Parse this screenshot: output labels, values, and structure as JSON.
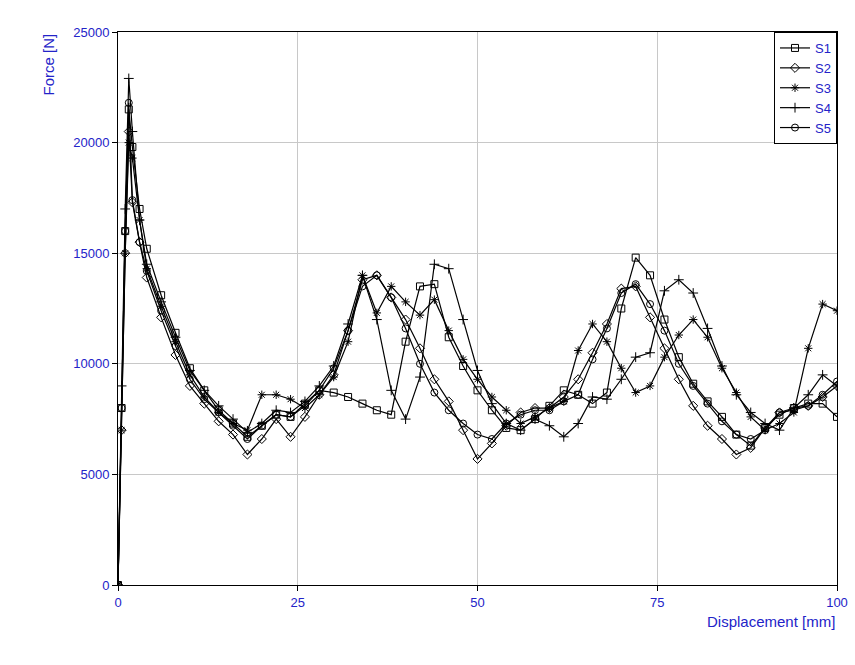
{
  "chart_data": {
    "type": "line",
    "x_label": "Displacement [mm]",
    "y_label": "Force [N]",
    "x": [
      0,
      0.5,
      1,
      1.5,
      2,
      3,
      4,
      6,
      8,
      10,
      12,
      14,
      16,
      18,
      20,
      22,
      24,
      26,
      28,
      30,
      32,
      34,
      36,
      38,
      40,
      42,
      44,
      46,
      48,
      50,
      52,
      54,
      56,
      58,
      60,
      62,
      64,
      66,
      68,
      70,
      72,
      74,
      76,
      78,
      80,
      82,
      84,
      86,
      88,
      90,
      92,
      94,
      96,
      98,
      100
    ],
    "series": [
      {
        "name": "S1",
        "color": "#000000",
        "marker": "square-open",
        "values": [
          0,
          8000,
          16000,
          21500,
          19800,
          17000,
          15200,
          13100,
          11400,
          9800,
          8800,
          7900,
          7300,
          6700,
          7200,
          7700,
          7600,
          8200,
          8800,
          8700,
          8500,
          8200,
          7900,
          7700,
          11000,
          13500,
          13600,
          11200,
          9900,
          8800,
          7900,
          7100,
          7000,
          7500,
          8100,
          8800,
          8600,
          8200,
          8700,
          12500,
          14800,
          14000,
          12000,
          10300,
          9100,
          8300,
          7600,
          6800,
          6300,
          7100,
          7700,
          8000,
          8200,
          8200,
          7600
        ]
      },
      {
        "name": "S2",
        "color": "#000000",
        "marker": "diamond-open",
        "values": [
          0,
          7000,
          15000,
          20500,
          17300,
          15500,
          13900,
          12100,
          10400,
          9000,
          8200,
          7400,
          6800,
          5900,
          6600,
          7500,
          6700,
          7600,
          8600,
          9500,
          11500,
          13800,
          14000,
          13000,
          12000,
          10700,
          9300,
          8300,
          7000,
          5700,
          6400,
          7200,
          7800,
          8000,
          8000,
          8500,
          9300,
          10500,
          11800,
          13400,
          13500,
          12100,
          10700,
          9300,
          8100,
          7200,
          6600,
          5900,
          6200,
          7100,
          7800,
          8000,
          8100,
          8500,
          9000
        ]
      },
      {
        "name": "S3",
        "color": "#000000",
        "marker": "asterisk-open",
        "values": [
          0,
          7000,
          15000,
          20000,
          19300,
          16500,
          14300,
          12600,
          11000,
          9500,
          8500,
          7800,
          7300,
          7000,
          8600,
          8600,
          8400,
          8000,
          8600,
          9400,
          11000,
          14000,
          12300,
          13500,
          12800,
          12200,
          12900,
          11500,
          10200,
          9300,
          8500,
          7900,
          7300,
          7600,
          8000,
          8300,
          10600,
          11800,
          11000,
          9800,
          8700,
          9000,
          10300,
          11300,
          12000,
          11200,
          9800,
          8700,
          7600,
          7000,
          7300,
          7800,
          10700,
          12700,
          12400
        ]
      },
      {
        "name": "S4",
        "color": "#000000",
        "marker": "cross-thin-open",
        "values": [
          0,
          9000,
          17000,
          22900,
          20500,
          16500,
          14500,
          12800,
          11200,
          9700,
          8800,
          8100,
          7500,
          6900,
          7300,
          7900,
          7800,
          8300,
          9000,
          9900,
          11800,
          14000,
          12000,
          8800,
          7500,
          9400,
          14500,
          14300,
          12000,
          9700,
          8200,
          7300,
          7000,
          7500,
          7200,
          6700,
          7300,
          8500,
          8400,
          9300,
          10300,
          10500,
          13300,
          13800,
          13200,
          11600,
          9900,
          8600,
          7800,
          7300,
          7000,
          8000,
          8600,
          9500,
          9000
        ]
      },
      {
        "name": "S5",
        "color": "#000000",
        "marker": "circle-open",
        "values": [
          0,
          8000,
          16000,
          21800,
          17400,
          15500,
          14200,
          12400,
          10800,
          9300,
          8400,
          7800,
          7200,
          6600,
          7200,
          7700,
          7600,
          8100,
          8800,
          9800,
          11500,
          13500,
          14000,
          13000,
          11600,
          10000,
          8700,
          7900,
          7300,
          6800,
          6600,
          7300,
          7700,
          7900,
          7900,
          8300,
          8600,
          10200,
          11600,
          13200,
          13600,
          12700,
          11500,
          10000,
          9000,
          8200,
          7400,
          6800,
          6600,
          7000,
          7800,
          7900,
          8100,
          8600,
          9200
        ]
      }
    ],
    "xlim": [
      0,
      100
    ],
    "xticks": [
      0,
      25,
      50,
      75,
      100
    ],
    "ylim": [
      0,
      25000
    ],
    "yticks": [
      0,
      5000,
      10000,
      15000,
      20000,
      25000
    ],
    "grid": true,
    "legend": "upper right"
  }
}
